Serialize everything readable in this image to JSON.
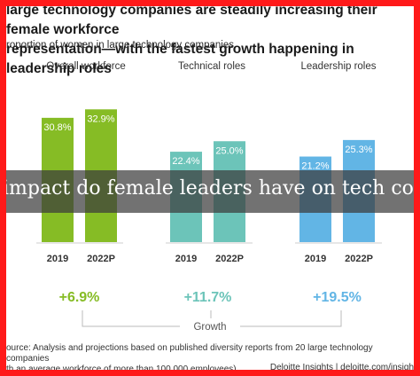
{
  "title": "large technology companies are steadily increasing their female workforce\nrepresentation—with the fastest growth happening in leadership roles",
  "subtitle": "roportion of women in large technology companies",
  "overlay_text": "impact do female leaders have on tech comp",
  "source": "ource: Analysis and projections based on published diversity reports from 20 large technology companies\nth an average workforce of more than 100,000 employees).",
  "credit": "Deloitte Insights | deloitte.com/insigh",
  "growth_label": "Growth",
  "colors": {
    "frame": "#ff1a1a",
    "overall": "#86bc25",
    "technical": "#6cc4b9",
    "leadership": "#62b5e5",
    "gridline": "#cccccc"
  },
  "chart_data": {
    "type": "bar",
    "title": "",
    "ylim": [
      0,
      40
    ],
    "groups": [
      {
        "name": "Overall workforce",
        "color": "#86bc25",
        "categories": [
          "2019",
          "2022P"
        ],
        "values": [
          30.8,
          32.9
        ],
        "labels": [
          "30.8%",
          "32.9%"
        ],
        "growth": "+6.9%"
      },
      {
        "name": "Technical roles",
        "color": "#6cc4b9",
        "categories": [
          "2019",
          "2022P"
        ],
        "values": [
          22.4,
          25.0
        ],
        "labels": [
          "22.4%",
          "25.0%"
        ],
        "growth": "+11.7%"
      },
      {
        "name": "Leadership roles",
        "color": "#62b5e5",
        "categories": [
          "2019",
          "2022P"
        ],
        "values": [
          21.2,
          25.3
        ],
        "labels": [
          "21.2%",
          "25.3%"
        ],
        "growth": "+19.5%"
      }
    ]
  }
}
